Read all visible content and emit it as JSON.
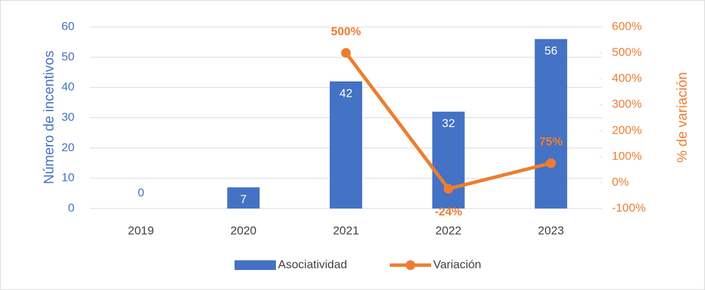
{
  "chart_data": {
    "type": "bar",
    "categories": [
      "2019",
      "2020",
      "2021",
      "2022",
      "2023"
    ],
    "series": [
      {
        "name": "Asociatividad",
        "type": "bar",
        "color": "#4472c4",
        "values": [
          0,
          7,
          42,
          32,
          56
        ]
      },
      {
        "name": "Variación",
        "type": "line",
        "axis": "y2",
        "color": "#ed7d31",
        "values": [
          null,
          null,
          500,
          -24,
          75
        ],
        "value_labels": [
          null,
          null,
          "500%",
          "-24%",
          "75%"
        ]
      }
    ],
    "y_label": "Número de incentivos",
    "y2_label": "% de variación",
    "ylim": [
      0,
      60
    ],
    "yticks": [
      0,
      10,
      20,
      30,
      40,
      50,
      60
    ],
    "y2lim": [
      -100,
      600
    ],
    "y2ticks": [
      {
        "value": -100,
        "label": "-100%"
      },
      {
        "value": 0,
        "label": "0%"
      },
      {
        "value": 100,
        "label": "100%"
      },
      {
        "value": 200,
        "label": "200%"
      },
      {
        "value": 300,
        "label": "300%"
      },
      {
        "value": 400,
        "label": "400%"
      },
      {
        "value": 500,
        "label": "500%"
      },
      {
        "value": 600,
        "label": "600%"
      }
    ],
    "grid": true,
    "legend": "bottom"
  }
}
